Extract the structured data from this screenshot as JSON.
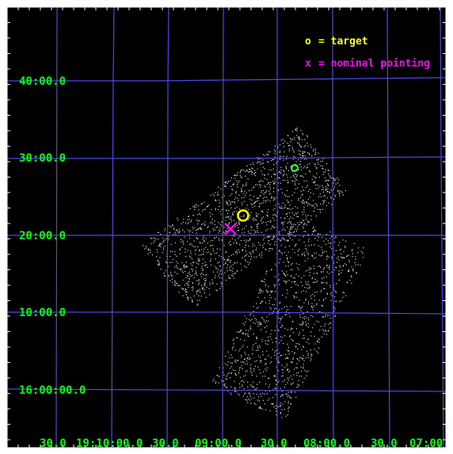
{
  "colors": {
    "background": "#000000",
    "frame": "#ffffff",
    "grid": "#4a4ae6",
    "labels": "#00ff00",
    "events": "#d8d8d8",
    "target": "#ffff00",
    "pointing": "#ff00ff",
    "source": "#33ff33"
  },
  "legend": {
    "target_symbol": "o",
    "target_text": "= target",
    "pointing_symbol": "x",
    "pointing_text": "= nominal pointing"
  },
  "dec_labels": [
    "40:00.0",
    "30:00.0",
    "20:00.0",
    "10:00.0",
    "16:00:00.0"
  ],
  "ra_labels": [
    "30.0",
    "19:10:00.0",
    "30.0",
    "09:00.0",
    "30.0",
    "08:00.0",
    "30.0",
    "07:00"
  ]
}
